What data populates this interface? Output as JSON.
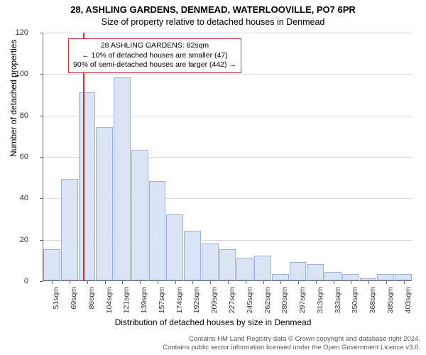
{
  "title_main": "28, ASHLING GARDENS, DENMEAD, WATERLOOVILLE, PO7 6PR",
  "title_sub": "Size of property relative to detached houses in Denmead",
  "y_axis_label": "Number of detached properties",
  "x_axis_label": "Distribution of detached houses by size in Denmead",
  "chart": {
    "type": "histogram",
    "ylim": [
      0,
      120
    ],
    "ytick_step": 20,
    "background_color": "#ffffff",
    "grid_color": "#d8d8d8",
    "axis_color": "#666666",
    "bar_fill": "#dbe4f5",
    "bar_border": "#9db1d6",
    "bins": [
      {
        "label": "51sqm",
        "value": 15
      },
      {
        "label": "69sqm",
        "value": 49
      },
      {
        "label": "86sqm",
        "value": 91
      },
      {
        "label": "104sqm",
        "value": 74
      },
      {
        "label": "121sqm",
        "value": 98
      },
      {
        "label": "139sqm",
        "value": 63
      },
      {
        "label": "157sqm",
        "value": 48
      },
      {
        "label": "174sqm",
        "value": 32
      },
      {
        "label": "192sqm",
        "value": 24
      },
      {
        "label": "209sqm",
        "value": 18
      },
      {
        "label": "227sqm",
        "value": 15
      },
      {
        "label": "245sqm",
        "value": 11
      },
      {
        "label": "262sqm",
        "value": 12
      },
      {
        "label": "280sqm",
        "value": 3
      },
      {
        "label": "297sqm",
        "value": 9
      },
      {
        "label": "313sqm",
        "value": 8
      },
      {
        "label": "333sqm",
        "value": 4
      },
      {
        "label": "350sqm",
        "value": 3
      },
      {
        "label": "368sqm",
        "value": 1
      },
      {
        "label": "385sqm",
        "value": 3
      },
      {
        "label": "403sqm",
        "value": 3
      }
    ],
    "marker": {
      "position_bin_index": 1.78,
      "color": "#d03030",
      "annotation_border": "#d03030",
      "lines": [
        "28 ASHLING GARDENS: 82sqm",
        "← 10% of detached houses are smaller (47)",
        "90% of semi-detached houses are larger (442) →"
      ]
    }
  },
  "footer_line1": "Contains HM Land Registry data © Crown copyright and database right 2024.",
  "footer_line2": "Contains public sector information licensed under the Open Government Licence v3.0."
}
